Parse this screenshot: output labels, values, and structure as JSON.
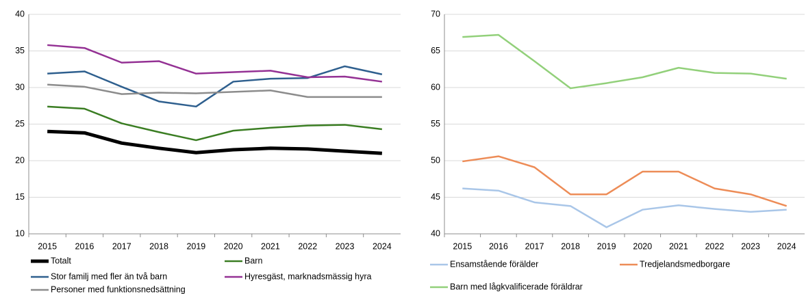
{
  "chart_data": [
    {
      "type": "line",
      "categories": [
        "2015",
        "2016",
        "2017",
        "2018",
        "2019",
        "2020",
        "2021",
        "2022",
        "2023",
        "2024"
      ],
      "ylim": [
        10,
        40
      ],
      "yticks": [
        10,
        15,
        20,
        25,
        30,
        35,
        40
      ],
      "grid": true,
      "series": [
        {
          "name": "Totalt",
          "color": "#000000",
          "line_width": 5,
          "values": [
            24.0,
            23.8,
            22.4,
            21.7,
            21.1,
            21.5,
            21.7,
            21.6,
            21.3,
            21.0
          ]
        },
        {
          "name": "Barn",
          "color": "#3a7d22",
          "values": [
            27.4,
            27.1,
            25.1,
            23.9,
            22.8,
            24.1,
            24.5,
            24.8,
            24.9,
            24.3
          ]
        },
        {
          "name": "Stor familj med fler än två barn",
          "color": "#2e5f8e",
          "values": [
            31.9,
            32.2,
            30.1,
            28.1,
            27.4,
            30.8,
            31.2,
            31.3,
            32.9,
            31.8
          ]
        },
        {
          "name": "Hyresgäst, marknadsmässig hyra",
          "color": "#943194",
          "values": [
            35.8,
            35.4,
            33.4,
            33.6,
            31.9,
            32.1,
            32.3,
            31.4,
            31.5,
            30.8
          ]
        },
        {
          "name": "Personer med funktionsnedsättning",
          "color": "#8c8c8c",
          "values": [
            30.4,
            30.1,
            29.1,
            29.3,
            29.2,
            29.4,
            29.6,
            28.7,
            28.7,
            28.7
          ]
        }
      ]
    },
    {
      "type": "line",
      "categories": [
        "2015",
        "2016",
        "2017",
        "2018",
        "2019",
        "2020",
        "2021",
        "2022",
        "2023",
        "2024"
      ],
      "ylim": [
        40,
        70
      ],
      "yticks": [
        40,
        45,
        50,
        55,
        60,
        65,
        70
      ],
      "grid": true,
      "series": [
        {
          "name": "Ensamstående förälder",
          "color": "#a9c6e8",
          "values": [
            46.2,
            45.9,
            44.3,
            43.8,
            40.9,
            43.3,
            43.9,
            43.4,
            43.0,
            43.3
          ]
        },
        {
          "name": "Tredjelandsmedborgare",
          "color": "#ed8c57",
          "values": [
            49.9,
            50.6,
            49.1,
            45.4,
            45.4,
            48.5,
            48.5,
            46.2,
            45.4,
            43.8
          ]
        },
        {
          "name": "Barn med lågkvalificerade föräldrar",
          "color": "#92d07a",
          "values": [
            66.9,
            67.2,
            63.6,
            59.9,
            60.6,
            61.4,
            62.7,
            62.0,
            61.9,
            61.2
          ]
        }
      ]
    }
  ]
}
